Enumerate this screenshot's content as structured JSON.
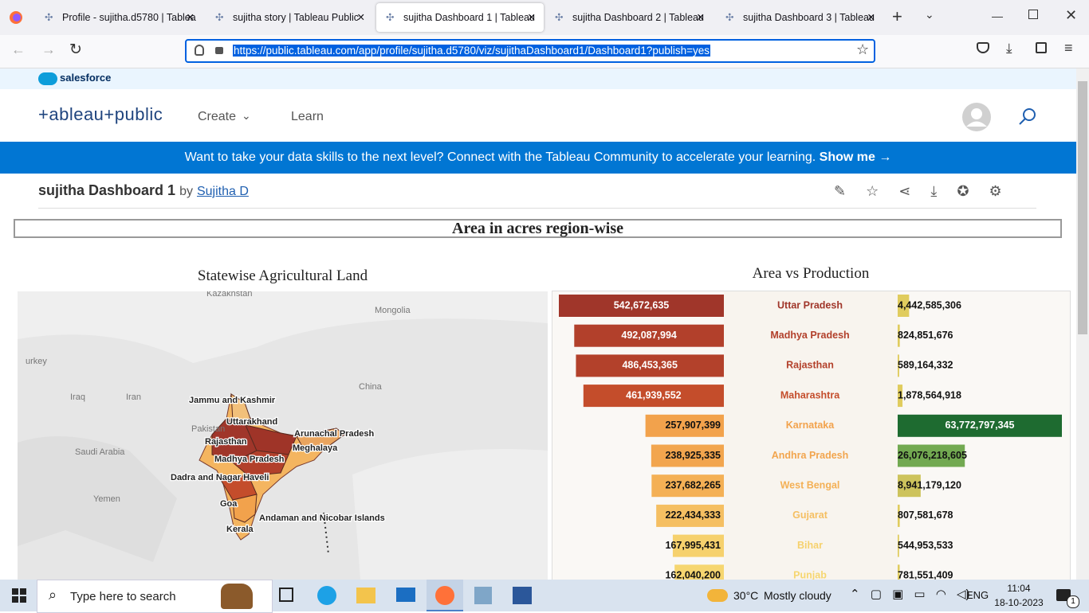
{
  "browser": {
    "tabs": [
      "Profile - sujitha.d5780 | Tablea",
      "sujitha story | Tableau Public",
      "sujitha Dashboard 1 | Tableau",
      "sujitha Dashboard 2 | Tableau",
      "sujitha Dashboard 3 | Tableau"
    ],
    "url": "https://public.tableau.com/app/profile/sujitha.d5780/viz/sujithaDashboard1/Dashboard1?publish=yes"
  },
  "site": {
    "brand": "salesforce",
    "logo": "+ableau+public",
    "nav": [
      "Create",
      "Learn"
    ],
    "banner": {
      "text": "Want to take your data skills to the next level? Connect with the Tableau Community to accelerate your learning.",
      "link": "Show me →"
    }
  },
  "viz": {
    "title": "sujitha Dashboard 1",
    "by": "by",
    "author": "Sujitha D"
  },
  "dashboard": {
    "title": "Area in acres region-wise",
    "map": {
      "title": "Statewise Agricultural Land",
      "countries": [
        "Kazakhstan",
        "Mongolia",
        "urkey",
        "Iraq",
        "Iran",
        "China",
        "Pakistan",
        "Saudi Arabia",
        "Yemen"
      ],
      "states": [
        "Jammu and Kashmir",
        "Uttarakhand",
        "Arunachal Pradesh",
        "Rajasthan",
        "Meghalaya",
        "Madhya Pradesh",
        "Dadra and Nagar Haveli",
        "Goa",
        "Andaman and Nicobar Islands",
        "Kerala"
      ]
    },
    "chart": {
      "title": "Area vs Production",
      "rows": [
        {
          "state": "Uttar Pradesh",
          "color": "#a0362a",
          "area": {
            "value": 542672635,
            "label": "542,672,635"
          },
          "production": {
            "value": 4442585306,
            "label": "4,442,585,306"
          },
          "production_color": "#e0cc5e"
        },
        {
          "state": "Madhya Pradesh",
          "color": "#b2402b",
          "area": {
            "value": 492087994,
            "label": "492,087,994"
          },
          "production": {
            "value": 824851676,
            "label": "824,851,676"
          },
          "production_color": "#e0cc5e"
        },
        {
          "state": "Rajasthan",
          "color": "#b3412b",
          "area": {
            "value": 486453365,
            "label": "486,453,365"
          },
          "production": {
            "value": 589164332,
            "label": "589,164,332"
          },
          "production_color": "#e0cc5e"
        },
        {
          "state": "Maharashtra",
          "color": "#c44d2b",
          "area": {
            "value": 461939552,
            "label": "461,939,552"
          },
          "production": {
            "value": 1878564918,
            "label": "1,878,564,918"
          },
          "production_color": "#e0cc5e"
        },
        {
          "state": "Karnataka",
          "color": "#f2a24c",
          "area": {
            "value": 257907399,
            "label": "257,907,399"
          },
          "production": {
            "value": 63772797345,
            "label": "63,772,797,345"
          },
          "production_color": "#1e6b30"
        },
        {
          "state": "Andhra Pradesh",
          "color": "#f2a54e",
          "area": {
            "value": 238925335,
            "label": "238,925,335"
          },
          "production": {
            "value": 26076218605,
            "label": "26,076,218,605"
          },
          "production_color": "#72a951"
        },
        {
          "state": "West Bengal",
          "color": "#f4b055",
          "area": {
            "value": 237682265,
            "label": "237,682,265"
          },
          "production": {
            "value": 8941179120,
            "label": "8,941,179,120"
          },
          "production_color": "#cdc35c"
        },
        {
          "state": "Gujarat",
          "color": "#f5bf62",
          "area": {
            "value": 222434333,
            "label": "222,434,333"
          },
          "production": {
            "value": 807581678,
            "label": "807,581,678"
          },
          "production_color": "#e0cc5e"
        },
        {
          "state": "Bihar",
          "color": "#f6d16d",
          "area": {
            "value": 167995431,
            "label": "167,995,431"
          },
          "production": {
            "value": 544953533,
            "label": "544,953,533"
          },
          "production_color": "#e0cc5e"
        },
        {
          "state": "Punjab",
          "color": "#f6d670",
          "area": {
            "value": 162040200,
            "label": "162,040,200"
          },
          "production": {
            "value": 781551409,
            "label": "781,551,409"
          },
          "production_color": "#e0cc5e"
        }
      ]
    }
  },
  "taskbar": {
    "search": "Type here to search",
    "temperature": "30°C",
    "weather": "Mostly cloudy",
    "language": "ENG",
    "time": "11:04",
    "date": "18-10-2023",
    "notifications": "1"
  }
}
